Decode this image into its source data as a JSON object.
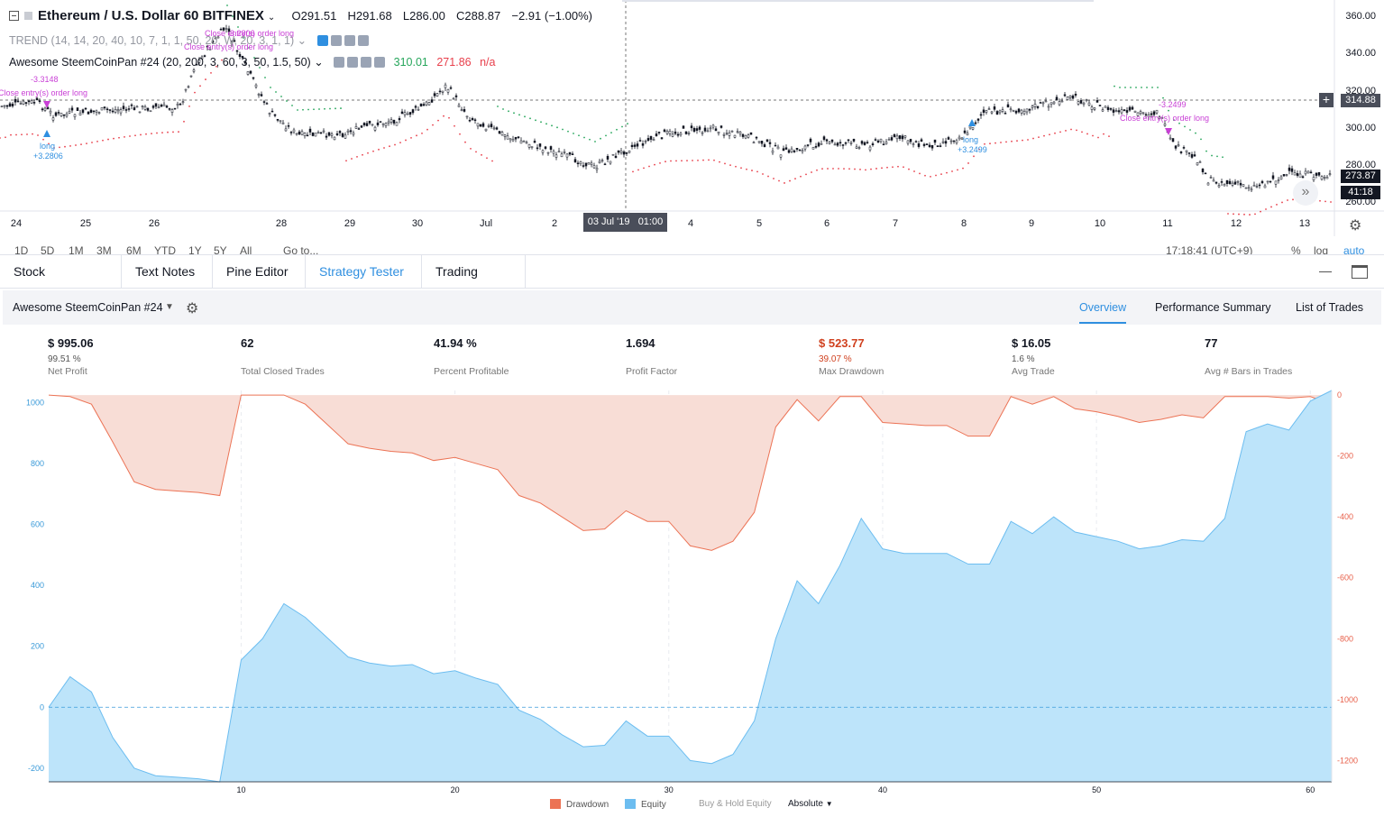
{
  "symbol": {
    "title": "Ethereum / U.S. Dollar",
    "interval": "60",
    "exchange": "BITFINEX",
    "open": "O291.51",
    "high": "H291.68",
    "low": "L286.00",
    "close": "C288.87",
    "change": "−2.91 (−1.00%)"
  },
  "indicators": {
    "trend": "TREND (14, 14, 20, 40, 10, 7, 1, 1, 50, 20, W, 20, 3, 1, 1)",
    "strategy": "Awesome SteemCoinPan #24 (20, 200, 3, 60, 3, 50, 1.5, 50)",
    "strategy_value1": "310.01",
    "strategy_value2": "271.86",
    "strategy_value3": "n/a"
  },
  "price_axis": {
    "ticks": [
      "360.00",
      "340.00",
      "320.00",
      "300.00",
      "280.00",
      "260.00"
    ],
    "current_price": "314.88",
    "last_price": "273.87",
    "countdown": "41:18"
  },
  "time_axis": {
    "labels": [
      "24",
      "25",
      "26",
      "28",
      "29",
      "30",
      "Jul",
      "2",
      "4",
      "5",
      "6",
      "7",
      "8",
      "9",
      "10",
      "11",
      "12",
      "13"
    ],
    "crosshair_date": "03 Jul '19",
    "crosshair_time": "01:00"
  },
  "chart_annotations": {
    "close_entry_label": "Close entry(s) order long",
    "long_label": "long",
    "long_value": "+3.2806",
    "long_value2": "+3.2499",
    "short_value": "-3.3148",
    "short_value2": "-3.2499",
    "partial_value": "3.2806"
  },
  "range_bar": [
    "1D",
    "5D",
    "1M",
    "3M",
    "6M",
    "YTD",
    "1Y",
    "5Y",
    "All",
    "Go to...",
    "17:18:41 (UTC+9)",
    "%",
    "log",
    "auto"
  ],
  "bottom_tabs": [
    "Stock Screener",
    "Text Notes",
    "Pine Editor",
    "Strategy Tester",
    "Trading Panel"
  ],
  "active_tab": "Strategy Tester",
  "strategy_header": {
    "name": "Awesome SteemCoinPan #24",
    "subtabs": [
      "Overview",
      "Performance Summary",
      "List of Trades"
    ],
    "active_subtab": "Overview"
  },
  "stats": [
    {
      "value": "$ 995.06",
      "sub": "99.51 %",
      "label": "Net Profit",
      "negative": false
    },
    {
      "value": "62",
      "sub": "",
      "label": "Total Closed Trades",
      "negative": false
    },
    {
      "value": "41.94 %",
      "sub": "",
      "label": "Percent Profitable",
      "negative": false
    },
    {
      "value": "1.694",
      "sub": "",
      "label": "Profit Factor",
      "negative": false
    },
    {
      "value": "$ 523.77",
      "sub": "39.07 %",
      "label": "Max Drawdown",
      "negative": true
    },
    {
      "value": "$ 16.05",
      "sub": "1.6 %",
      "label": "Avg Trade",
      "negative": false
    },
    {
      "value": "77",
      "sub": "",
      "label": "Avg # Bars in Trades",
      "negative": false
    }
  ],
  "equity_legend": {
    "drawdown": "Drawdown",
    "equity": "Equity",
    "buy_hold": "Buy & Hold Equity",
    "mode": "Absolute"
  },
  "colors": {
    "equity_fill": "#bde4fa",
    "equity_line": "#6cbdf0",
    "drawdown_fill": "#f8ddd6",
    "drawdown_line": "#ec7355",
    "accent": "#2f8fe0"
  },
  "chart_data": {
    "type": "area",
    "x": [
      1,
      2,
      3,
      4,
      5,
      6,
      7,
      8,
      9,
      10,
      11,
      12,
      13,
      14,
      15,
      16,
      17,
      18,
      19,
      20,
      21,
      22,
      23,
      24,
      25,
      26,
      27,
      28,
      29,
      30,
      31,
      32,
      33,
      34,
      35,
      36,
      37,
      38,
      39,
      40,
      41,
      42,
      43,
      44,
      45,
      46,
      47,
      48,
      49,
      50,
      51,
      52,
      53,
      54,
      55,
      56,
      57,
      58,
      59,
      60,
      61
    ],
    "x_ticks": [
      10,
      20,
      30,
      40,
      50,
      60
    ],
    "series": [
      {
        "name": "Equity",
        "axis": "left",
        "values": [
          0,
          100,
          50,
          -100,
          -200,
          -225,
          -230,
          -235,
          -245,
          155,
          225,
          340,
          295,
          230,
          165,
          145,
          135,
          140,
          110,
          120,
          95,
          75,
          -10,
          -40,
          -90,
          -130,
          -125,
          -45,
          -95,
          -95,
          -175,
          -185,
          -155,
          -45,
          225,
          415,
          340,
          465,
          620,
          520,
          505,
          505,
          505,
          470,
          470,
          610,
          570,
          625,
          575,
          560,
          545,
          520,
          530,
          550,
          545,
          620,
          905,
          930,
          910,
          1005,
          1040
        ]
      },
      {
        "name": "Drawdown",
        "axis": "right",
        "values": [
          0,
          -5,
          -30,
          -155,
          -285,
          -310,
          -315,
          -320,
          -330,
          0,
          0,
          0,
          -30,
          -95,
          -160,
          -175,
          -185,
          -190,
          -215,
          -205,
          -225,
          -245,
          -330,
          -355,
          -400,
          -445,
          -440,
          -380,
          -415,
          -415,
          -495,
          -510,
          -480,
          -385,
          -105,
          -15,
          -85,
          -5,
          -5,
          -90,
          -95,
          -100,
          -100,
          -135,
          -135,
          -5,
          -30,
          -5,
          -45,
          -55,
          -70,
          -90,
          -80,
          -65,
          -75,
          -5,
          -5,
          -5,
          -10,
          -5,
          -30
        ]
      }
    ],
    "left_axis": {
      "ticks": [
        1000,
        800,
        600,
        400,
        200,
        0,
        -200
      ],
      "range": [
        -245,
        1040
      ]
    },
    "right_axis": {
      "ticks": [
        0,
        -200,
        -400,
        -600,
        -800,
        -1000,
        -1200
      ],
      "range": [
        -1270,
        15
      ]
    }
  }
}
